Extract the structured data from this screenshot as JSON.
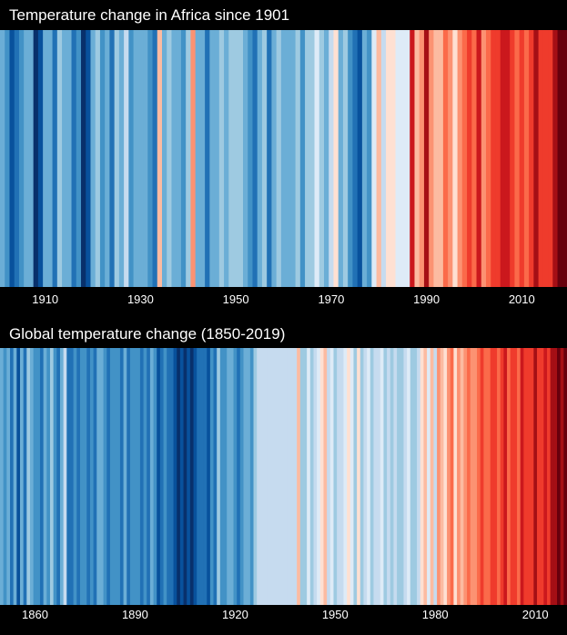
{
  "colors": {
    "background": "#000000",
    "scale": [
      "#08306b",
      "#08519c",
      "#2171b5",
      "#4292c6",
      "#6baed6",
      "#9ecae1",
      "#c6dbef",
      "#deebf7",
      "#fee0d2",
      "#fcbba1",
      "#fc9272",
      "#fb6a4a",
      "#ef3b2c",
      "#cb181d",
      "#a50f15",
      "#67000d"
    ]
  },
  "chart_data": [
    {
      "type": "heatmap",
      "title": "Temperature change in Africa since 1901",
      "xlabel": "",
      "ylabel": "",
      "x_range": [
        1901,
        2019
      ],
      "tick_labels": [
        "1910",
        "1930",
        "1950",
        "1970",
        "1990",
        "2010"
      ],
      "tick_values": [
        1910,
        1930,
        1950,
        1970,
        1990,
        2010
      ],
      "grid": false,
      "values_scale": "color index 0 (coldest, dark blue) to 15 (warmest, dark red)",
      "values": [
        4,
        3,
        1,
        2,
        3,
        4,
        4,
        0,
        1,
        4,
        4,
        2,
        5,
        4,
        4,
        2,
        3,
        0,
        1,
        4,
        5,
        3,
        4,
        2,
        5,
        4,
        6,
        3,
        4,
        4,
        4,
        3,
        2,
        9,
        4,
        5,
        4,
        4,
        3,
        5,
        10,
        4,
        4,
        2,
        4,
        4,
        5,
        4,
        5,
        5,
        5,
        4,
        3,
        2,
        4,
        5,
        2,
        4,
        5,
        4,
        4,
        4,
        5,
        3,
        5,
        5,
        7,
        5,
        4,
        6,
        8,
        4,
        5,
        3,
        2,
        1,
        4,
        3,
        7,
        9,
        6,
        8,
        8,
        7,
        7,
        7,
        13,
        9,
        10,
        14,
        10,
        9,
        9,
        11,
        10,
        8,
        10,
        11,
        12,
        11,
        13,
        10,
        11,
        12,
        12,
        13,
        13,
        12,
        11,
        12,
        11,
        12,
        14,
        12,
        12,
        12,
        14,
        15,
        15
      ]
    },
    {
      "type": "heatmap",
      "title": "Global temperature change (1850-2019)",
      "xlabel": "",
      "ylabel": "",
      "x_range": [
        1850,
        2019
      ],
      "tick_labels": [
        "1860",
        "1890",
        "1920",
        "1950",
        "1980",
        "2010"
      ],
      "tick_values": [
        1860,
        1890,
        1920,
        1950,
        1980,
        2010
      ],
      "grid": false,
      "values_scale": "color index 0 (coldest, dark blue) to 15 (warmest, dark red)",
      "values": [
        4,
        3,
        4,
        2,
        4,
        1,
        4,
        2,
        5,
        4,
        3,
        3,
        2,
        4,
        3,
        5,
        3,
        2,
        4,
        6,
        2,
        2,
        3,
        2,
        3,
        3,
        2,
        3,
        2,
        4,
        4,
        3,
        2,
        3,
        3,
        3,
        2,
        4,
        2,
        3,
        3,
        3,
        2,
        3,
        2,
        4,
        3,
        1,
        2,
        3,
        2,
        2,
        1,
        0,
        1,
        0,
        1,
        0,
        1,
        2,
        2,
        2,
        1,
        3,
        2,
        5,
        3,
        3,
        4,
        4,
        3,
        2,
        3,
        4,
        4,
        3,
        5,
        6,
        6,
        6,
        6,
        6,
        6,
        6,
        6,
        6,
        6,
        6,
        6,
        9,
        5,
        5,
        7,
        5,
        6,
        7,
        8,
        9,
        6,
        7,
        5,
        6,
        6,
        7,
        8,
        7,
        5,
        8,
        5,
        6,
        7,
        5,
        6,
        6,
        7,
        5,
        6,
        5,
        6,
        5,
        5,
        6,
        7,
        5,
        5,
        6,
        8,
        9,
        7,
        9,
        6,
        10,
        9,
        8,
        10,
        11,
        8,
        10,
        9,
        10,
        11,
        10,
        10,
        11,
        12,
        11,
        11,
        12,
        12,
        11,
        12,
        13,
        11,
        12,
        12,
        11,
        13,
        12,
        12,
        12,
        14,
        12,
        12,
        13,
        12,
        14,
        14,
        15,
        14,
        15
      ]
    }
  ]
}
